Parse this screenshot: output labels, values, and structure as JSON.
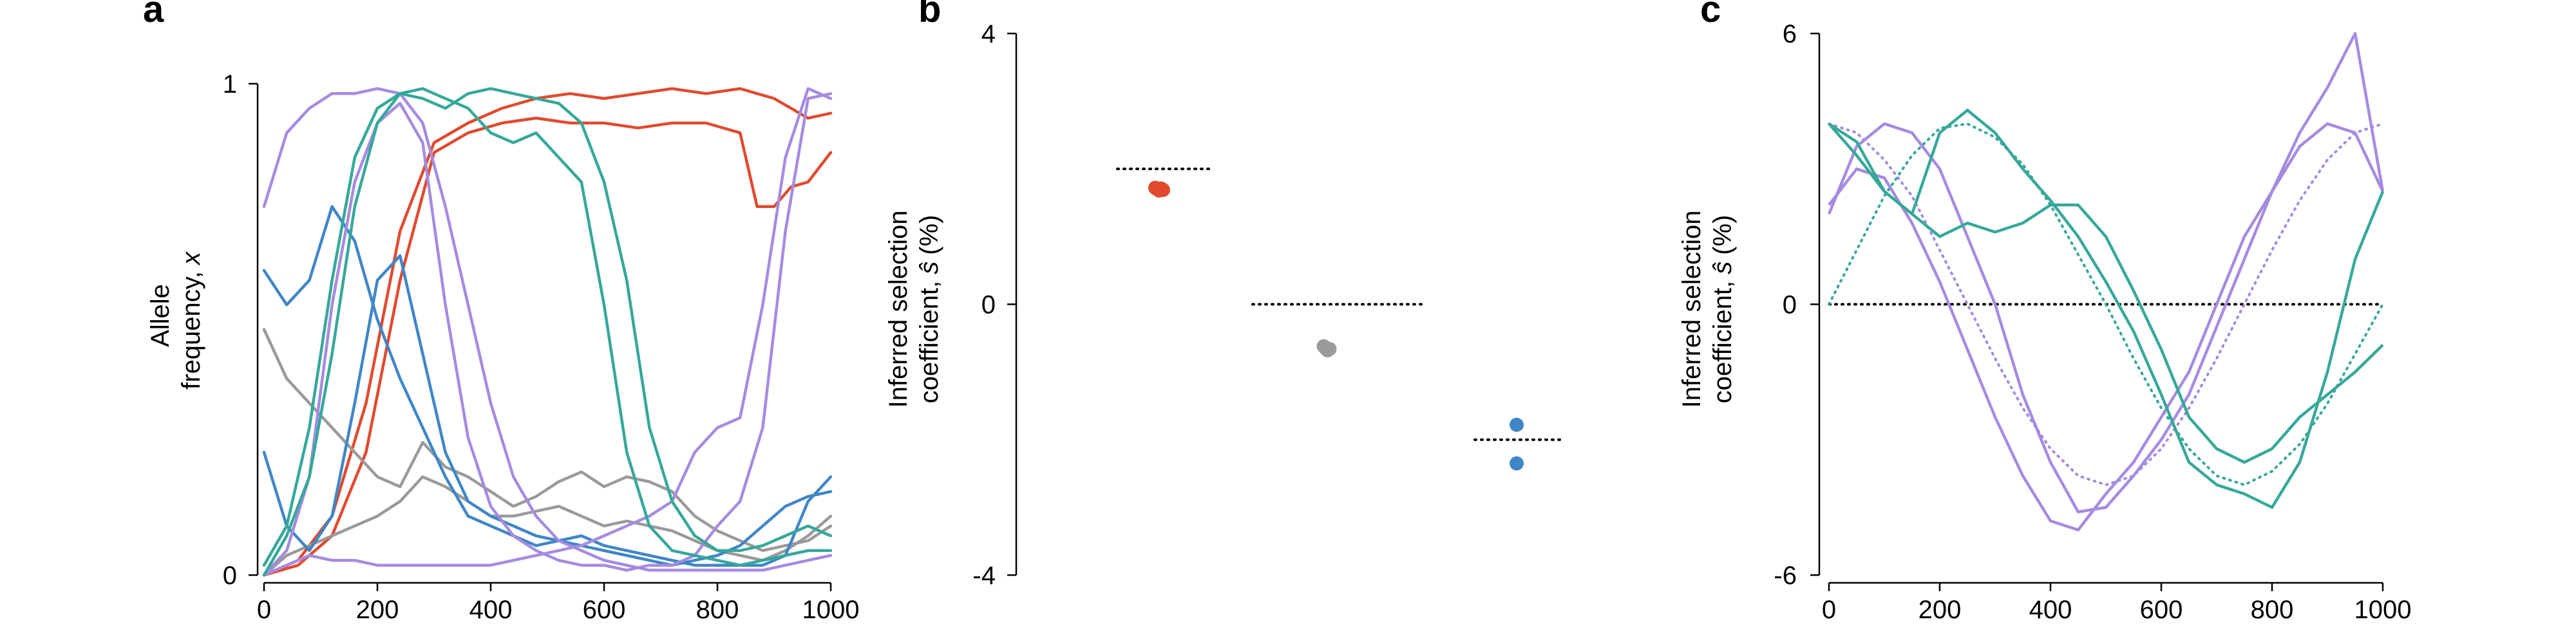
{
  "colors": {
    "red": "#e04a2e",
    "gray": "#9a9a9a",
    "blue": "#3f86c6",
    "purple": "#a58be0",
    "teal": "#36a89a",
    "black": "#000000"
  },
  "panel_letters": {
    "a": "a",
    "b": "b",
    "c": "c"
  },
  "chart_data": [
    {
      "panel": "a",
      "type": "line",
      "xlabel": "",
      "ylabel_line1": "Allele",
      "ylabel_line2": "frequency,",
      "ylabel_var": "x",
      "xlim": [
        0,
        1000
      ],
      "ylim": [
        0,
        1
      ],
      "xticks": [
        0,
        200,
        400,
        600,
        800,
        1000
      ],
      "xtick_labels": [
        "0",
        "200",
        "400",
        "600",
        "800",
        "1000"
      ],
      "yticks": [
        0,
        1
      ],
      "ytick_labels": [
        "0",
        "1"
      ],
      "series": [
        {
          "color": "red",
          "x": [
            0,
            60,
            120,
            180,
            240,
            300,
            360,
            420,
            480,
            540,
            600,
            660,
            720,
            780,
            840,
            900,
            960,
            1000
          ],
          "values": [
            0.0,
            0.03,
            0.12,
            0.35,
            0.7,
            0.88,
            0.92,
            0.95,
            0.97,
            0.98,
            0.97,
            0.98,
            0.99,
            0.98,
            0.99,
            0.97,
            0.93,
            0.94
          ]
        },
        {
          "color": "red",
          "x": [
            0,
            60,
            120,
            180,
            240,
            300,
            360,
            420,
            480,
            540,
            600,
            660,
            720,
            780,
            840,
            870,
            900,
            930,
            960,
            1000
          ],
          "values": [
            0.0,
            0.02,
            0.08,
            0.25,
            0.6,
            0.86,
            0.9,
            0.92,
            0.93,
            0.92,
            0.92,
            0.91,
            0.92,
            0.92,
            0.9,
            0.75,
            0.75,
            0.79,
            0.8,
            0.86
          ]
        },
        {
          "color": "gray",
          "x": [
            0,
            40,
            80,
            120,
            160,
            200,
            240,
            280,
            320,
            360,
            400,
            440,
            480,
            520,
            560,
            600,
            640,
            680,
            720,
            760,
            800,
            840,
            880,
            920,
            960,
            1000
          ],
          "values": [
            0.5,
            0.4,
            0.35,
            0.3,
            0.25,
            0.2,
            0.18,
            0.27,
            0.22,
            0.2,
            0.17,
            0.14,
            0.16,
            0.19,
            0.21,
            0.18,
            0.2,
            0.19,
            0.17,
            0.12,
            0.09,
            0.07,
            0.05,
            0.06,
            0.07,
            0.1
          ]
        },
        {
          "color": "gray",
          "x": [
            0,
            40,
            80,
            120,
            160,
            200,
            240,
            280,
            320,
            360,
            400,
            440,
            480,
            520,
            560,
            600,
            640,
            680,
            720,
            760,
            800,
            840,
            880,
            920,
            960,
            1000
          ],
          "values": [
            0.0,
            0.04,
            0.06,
            0.08,
            0.1,
            0.12,
            0.15,
            0.2,
            0.18,
            0.15,
            0.12,
            0.12,
            0.13,
            0.14,
            0.12,
            0.1,
            0.11,
            0.1,
            0.09,
            0.07,
            0.05,
            0.04,
            0.03,
            0.05,
            0.08,
            0.12
          ]
        },
        {
          "color": "blue",
          "x": [
            0,
            40,
            80,
            120,
            160,
            200,
            240,
            280,
            320,
            360,
            400,
            440,
            480,
            520,
            560,
            600,
            640,
            680,
            720,
            760,
            800,
            840,
            880,
            920,
            960,
            1000
          ],
          "values": [
            0.62,
            0.55,
            0.6,
            0.75,
            0.68,
            0.52,
            0.4,
            0.3,
            0.2,
            0.12,
            0.1,
            0.08,
            0.06,
            0.07,
            0.08,
            0.06,
            0.05,
            0.04,
            0.03,
            0.02,
            0.02,
            0.02,
            0.02,
            0.04,
            0.15,
            0.2
          ]
        },
        {
          "color": "blue",
          "x": [
            0,
            40,
            80,
            120,
            160,
            200,
            240,
            280,
            320,
            360,
            400,
            440,
            480,
            520,
            560,
            600,
            640,
            680,
            720,
            760,
            800,
            840,
            880,
            920,
            960,
            1000
          ],
          "values": [
            0.25,
            0.1,
            0.05,
            0.12,
            0.35,
            0.6,
            0.65,
            0.45,
            0.25,
            0.15,
            0.12,
            0.1,
            0.08,
            0.07,
            0.06,
            0.05,
            0.04,
            0.03,
            0.02,
            0.03,
            0.04,
            0.06,
            0.1,
            0.14,
            0.16,
            0.17
          ]
        },
        {
          "color": "purple",
          "x": [
            0,
            40,
            80,
            120,
            160,
            200,
            240,
            280,
            320,
            360,
            400,
            440,
            480,
            520,
            560,
            600,
            640,
            680,
            720,
            760,
            800,
            840,
            880,
            920,
            960,
            1000
          ],
          "values": [
            0.75,
            0.9,
            0.95,
            0.98,
            0.98,
            0.99,
            0.98,
            0.92,
            0.75,
            0.55,
            0.35,
            0.2,
            0.12,
            0.07,
            0.05,
            0.03,
            0.02,
            0.01,
            0.01,
            0.01,
            0.01,
            0.01,
            0.01,
            0.02,
            0.03,
            0.04
          ]
        },
        {
          "color": "purple",
          "x": [
            0,
            40,
            80,
            120,
            160,
            200,
            240,
            280,
            320,
            360,
            400,
            440,
            480,
            520,
            560,
            600,
            640,
            680,
            720,
            760,
            800,
            840,
            880,
            920,
            960,
            1000
          ],
          "values": [
            0.0,
            0.05,
            0.2,
            0.55,
            0.8,
            0.92,
            0.96,
            0.88,
            0.55,
            0.28,
            0.14,
            0.08,
            0.05,
            0.03,
            0.02,
            0.02,
            0.01,
            0.02,
            0.02,
            0.04,
            0.1,
            0.15,
            0.3,
            0.7,
            0.97,
            0.98
          ]
        },
        {
          "color": "purple",
          "x": [
            0,
            40,
            80,
            120,
            160,
            200,
            240,
            280,
            320,
            360,
            400,
            440,
            480,
            520,
            560,
            600,
            640,
            680,
            720,
            760,
            800,
            840,
            880,
            920,
            960,
            1000
          ],
          "values": [
            0.0,
            0.02,
            0.04,
            0.03,
            0.03,
            0.02,
            0.02,
            0.02,
            0.02,
            0.02,
            0.02,
            0.03,
            0.04,
            0.05,
            0.06,
            0.08,
            0.1,
            0.12,
            0.15,
            0.25,
            0.3,
            0.32,
            0.55,
            0.85,
            0.99,
            0.97
          ]
        },
        {
          "color": "teal",
          "x": [
            0,
            40,
            80,
            120,
            160,
            200,
            240,
            280,
            320,
            360,
            400,
            440,
            480,
            520,
            560,
            600,
            640,
            680,
            720,
            760,
            800,
            840,
            880,
            920,
            960,
            1000
          ],
          "values": [
            0.0,
            0.08,
            0.2,
            0.45,
            0.75,
            0.92,
            0.98,
            0.99,
            0.97,
            0.95,
            0.9,
            0.88,
            0.9,
            0.85,
            0.8,
            0.55,
            0.25,
            0.1,
            0.05,
            0.04,
            0.03,
            0.02,
            0.03,
            0.04,
            0.05,
            0.05
          ]
        },
        {
          "color": "teal",
          "x": [
            0,
            40,
            80,
            120,
            160,
            200,
            240,
            280,
            320,
            360,
            400,
            440,
            480,
            520,
            560,
            600,
            640,
            680,
            720,
            760,
            800,
            840,
            880,
            920,
            960,
            1000
          ],
          "values": [
            0.02,
            0.1,
            0.3,
            0.6,
            0.85,
            0.95,
            0.98,
            0.97,
            0.95,
            0.98,
            0.99,
            0.98,
            0.97,
            0.96,
            0.92,
            0.8,
            0.6,
            0.3,
            0.15,
            0.08,
            0.05,
            0.05,
            0.06,
            0.08,
            0.1,
            0.08
          ]
        }
      ]
    },
    {
      "panel": "b",
      "type": "scatter",
      "ylabel_line1": "Inferred selection",
      "ylabel_line2": "coefficient,",
      "ylabel_var": "ŝ",
      "ylabel_unit": "(%)",
      "ylim": [
        -4,
        4
      ],
      "yticks": [
        -4,
        0,
        4
      ],
      "ytick_labels": [
        "-4",
        "0",
        "4"
      ],
      "groups": [
        {
          "color": "red",
          "true_value": 2.0,
          "points": [
            1.72,
            1.7,
            1.68,
            1.71,
            1.69
          ]
        },
        {
          "color": "gray",
          "true_value": 0.0,
          "points": [
            -0.62,
            -0.65,
            -0.68,
            -0.66
          ]
        },
        {
          "color": "blue",
          "true_value": -2.0,
          "points": [
            -1.78,
            -2.35
          ]
        }
      ]
    },
    {
      "panel": "c",
      "type": "line",
      "ylabel_line1": "Inferred selection",
      "ylabel_line2": "coefficient,",
      "ylabel_var": "ŝ",
      "ylabel_unit": "(%)",
      "xlim": [
        0,
        1000
      ],
      "ylim": [
        -6,
        6
      ],
      "xticks": [
        0,
        200,
        400,
        600,
        800,
        1000
      ],
      "xtick_labels": [
        "0",
        "200",
        "400",
        "600",
        "800",
        "1000"
      ],
      "yticks": [
        -6,
        0,
        6
      ],
      "ytick_labels": [
        "-6",
        "0",
        "6"
      ],
      "true_series": [
        {
          "color": "purple",
          "x": [
            0,
            50,
            100,
            150,
            200,
            250,
            300,
            350,
            400,
            450,
            500,
            550,
            600,
            650,
            700,
            750,
            800,
            850,
            900,
            950,
            1000
          ],
          "values": [
            4.0,
            3.8,
            3.2,
            2.4,
            1.2,
            0.0,
            -1.2,
            -2.3,
            -3.2,
            -3.8,
            -4.0,
            -3.8,
            -3.2,
            -2.3,
            -1.2,
            0.0,
            1.2,
            2.3,
            3.2,
            3.8,
            4.0
          ]
        },
        {
          "color": "teal",
          "x": [
            0,
            50,
            100,
            150,
            200,
            250,
            300,
            350,
            400,
            450,
            500,
            550,
            600,
            650,
            700,
            750,
            800,
            850,
            900,
            950,
            1000
          ],
          "values": [
            0.0,
            1.2,
            2.4,
            3.3,
            3.9,
            4.0,
            3.7,
            3.1,
            2.2,
            1.1,
            0.0,
            -1.2,
            -2.3,
            -3.2,
            -3.8,
            -4.0,
            -3.7,
            -3.1,
            -2.2,
            -1.1,
            0.0
          ]
        }
      ],
      "series": [
        {
          "color": "purple",
          "x": [
            0,
            50,
            100,
            150,
            200,
            250,
            300,
            350,
            400,
            450,
            500,
            550,
            600,
            650,
            700,
            750,
            800,
            850,
            900,
            950,
            1000
          ],
          "values": [
            2.0,
            3.5,
            4.0,
            3.8,
            3.0,
            1.5,
            0.0,
            -2.0,
            -3.5,
            -4.6,
            -4.5,
            -3.8,
            -3.0,
            -2.0,
            -0.5,
            1.0,
            2.5,
            3.5,
            4.0,
            3.8,
            2.5
          ]
        },
        {
          "color": "purple",
          "x": [
            0,
            50,
            100,
            150,
            200,
            250,
            300,
            350,
            400,
            450,
            500,
            550,
            600,
            650,
            700,
            750,
            800,
            850,
            900,
            950,
            1000
          ],
          "values": [
            2.2,
            3.0,
            2.8,
            1.8,
            0.5,
            -1.0,
            -2.5,
            -3.8,
            -4.8,
            -5.0,
            -4.2,
            -3.5,
            -2.5,
            -1.5,
            0.0,
            1.5,
            2.5,
            3.8,
            4.8,
            6.0,
            2.5
          ]
        },
        {
          "color": "teal",
          "x": [
            0,
            50,
            100,
            150,
            200,
            250,
            300,
            350,
            400,
            450,
            500,
            550,
            600,
            650,
            700,
            750,
            800,
            850,
            900,
            950,
            1000
          ],
          "values": [
            4.0,
            3.3,
            2.5,
            2.0,
            1.5,
            1.8,
            1.6,
            1.8,
            2.2,
            2.2,
            1.5,
            0.3,
            -1.0,
            -2.5,
            -3.2,
            -3.5,
            -3.2,
            -2.5,
            -2.0,
            -1.5,
            -0.9
          ]
        },
        {
          "color": "teal",
          "x": [
            0,
            50,
            100,
            150,
            200,
            250,
            300,
            350,
            400,
            450,
            500,
            550,
            600,
            650,
            700,
            750,
            800,
            850,
            900,
            950,
            1000
          ],
          "values": [
            4.0,
            3.6,
            2.5,
            2.0,
            3.8,
            4.3,
            3.8,
            3.0,
            2.3,
            1.5,
            0.5,
            -0.6,
            -2.0,
            -3.5,
            -4.0,
            -4.2,
            -4.5,
            -3.5,
            -1.5,
            1.0,
            2.5
          ]
        }
      ]
    }
  ]
}
